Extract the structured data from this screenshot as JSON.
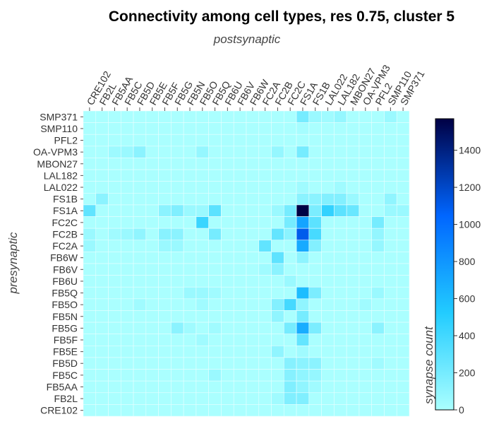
{
  "chart_data": {
    "type": "heatmap",
    "title": "Connectivity among cell types, res 0.75, cluster 5",
    "xlabel": "postsynaptic",
    "ylabel": "presynaptic",
    "colorbar_label": "synapse count",
    "x_categories": [
      "CRE102",
      "FB2L",
      "FB5AA",
      "FB5C",
      "FB5D",
      "FB5E",
      "FB5F",
      "FB5G",
      "FB5N",
      "FB5O",
      "FB5Q",
      "FB6U",
      "FB6V",
      "FB6W",
      "FC2A",
      "FC2B",
      "FC2C",
      "FS1A",
      "FS1B",
      "LAL022",
      "LAL182",
      "MBON27",
      "OA-VPM3",
      "PFL2",
      "SMP110",
      "SMP371"
    ],
    "y_categories": [
      "SMP371",
      "SMP110",
      "PFL2",
      "OA-VPM3",
      "MBON27",
      "LAL182",
      "LAL022",
      "FS1B",
      "FS1A",
      "FC2C",
      "FC2B",
      "FC2A",
      "FB6W",
      "FB6V",
      "FB6U",
      "FB5Q",
      "FB5O",
      "FB5N",
      "FB5G",
      "FB5F",
      "FB5E",
      "FB5D",
      "FB5C",
      "FB5AA",
      "FB2L",
      "CRE102"
    ],
    "colorbar_range": [
      0,
      1570
    ],
    "colorbar_ticks": [
      "0",
      "200",
      "400",
      "600",
      "800",
      "1000",
      "1200",
      "1400"
    ],
    "colorscale": [
      "#aaffff",
      "#22ccff",
      "#0066ff",
      "#000044"
    ],
    "values": [
      [
        0,
        0,
        0,
        0,
        0,
        0,
        0,
        0,
        0,
        0,
        0,
        0,
        0,
        0,
        0,
        0,
        0,
        200,
        60,
        40,
        80,
        0,
        0,
        0,
        60,
        0
      ],
      [
        0,
        0,
        0,
        0,
        0,
        0,
        0,
        0,
        0,
        0,
        0,
        0,
        0,
        0,
        0,
        0,
        0,
        20,
        0,
        0,
        0,
        0,
        0,
        0,
        0,
        0
      ],
      [
        0,
        0,
        0,
        0,
        0,
        0,
        0,
        0,
        0,
        0,
        0,
        0,
        0,
        0,
        0,
        0,
        0,
        0,
        0,
        0,
        0,
        0,
        0,
        0,
        0,
        0
      ],
      [
        0,
        0,
        50,
        60,
        120,
        0,
        0,
        0,
        0,
        80,
        0,
        0,
        0,
        0,
        0,
        80,
        0,
        200,
        0,
        0,
        0,
        0,
        0,
        0,
        0,
        0
      ],
      [
        0,
        0,
        0,
        0,
        0,
        0,
        0,
        0,
        0,
        0,
        0,
        0,
        0,
        0,
        0,
        0,
        0,
        0,
        0,
        0,
        0,
        0,
        0,
        0,
        0,
        0
      ],
      [
        0,
        0,
        0,
        0,
        0,
        0,
        0,
        0,
        0,
        0,
        0,
        0,
        0,
        0,
        0,
        0,
        0,
        0,
        0,
        0,
        0,
        0,
        0,
        0,
        0,
        0
      ],
      [
        0,
        0,
        0,
        0,
        0,
        0,
        0,
        0,
        0,
        0,
        0,
        0,
        0,
        0,
        0,
        0,
        0,
        40,
        0,
        0,
        40,
        0,
        0,
        0,
        0,
        0
      ],
      [
        0,
        120,
        0,
        0,
        0,
        0,
        0,
        0,
        0,
        0,
        0,
        0,
        0,
        0,
        0,
        0,
        0,
        120,
        120,
        150,
        150,
        60,
        0,
        0,
        100,
        0
      ],
      [
        280,
        0,
        0,
        0,
        0,
        0,
        120,
        160,
        60,
        60,
        300,
        0,
        0,
        0,
        0,
        60,
        200,
        1570,
        180,
        460,
        300,
        250,
        0,
        0,
        60,
        60
      ],
      [
        0,
        0,
        0,
        0,
        0,
        0,
        0,
        0,
        0,
        430,
        0,
        0,
        0,
        0,
        0,
        0,
        200,
        730,
        300,
        0,
        0,
        0,
        0,
        200,
        0,
        0
      ],
      [
        60,
        0,
        40,
        60,
        100,
        0,
        130,
        120,
        0,
        0,
        200,
        0,
        0,
        0,
        0,
        270,
        120,
        1100,
        380,
        0,
        0,
        0,
        0,
        90,
        0,
        0
      ],
      [
        60,
        0,
        0,
        0,
        0,
        0,
        60,
        60,
        0,
        0,
        0,
        0,
        0,
        0,
        280,
        0,
        0,
        700,
        150,
        0,
        0,
        0,
        0,
        80,
        0,
        0
      ],
      [
        0,
        0,
        0,
        0,
        0,
        0,
        0,
        0,
        0,
        0,
        0,
        0,
        0,
        0,
        0,
        290,
        0,
        110,
        0,
        0,
        0,
        0,
        0,
        0,
        0,
        0
      ],
      [
        0,
        0,
        0,
        0,
        0,
        0,
        0,
        0,
        0,
        0,
        0,
        0,
        0,
        0,
        40,
        120,
        0,
        0,
        0,
        0,
        0,
        0,
        0,
        0,
        0,
        0
      ],
      [
        0,
        0,
        0,
        0,
        0,
        0,
        0,
        0,
        0,
        0,
        0,
        0,
        0,
        0,
        0,
        0,
        60,
        0,
        0,
        0,
        0,
        0,
        0,
        0,
        0,
        0
      ],
      [
        0,
        0,
        0,
        0,
        0,
        0,
        0,
        0,
        60,
        60,
        40,
        0,
        0,
        0,
        0,
        0,
        0,
        600,
        180,
        0,
        0,
        0,
        0,
        60,
        0,
        0
      ],
      [
        0,
        0,
        0,
        0,
        40,
        0,
        0,
        0,
        0,
        40,
        0,
        0,
        0,
        0,
        0,
        150,
        390,
        100,
        0,
        0,
        0,
        0,
        40,
        0,
        0,
        0
      ],
      [
        0,
        0,
        0,
        0,
        0,
        0,
        0,
        0,
        0,
        0,
        0,
        0,
        0,
        0,
        0,
        100,
        0,
        200,
        0,
        0,
        0,
        0,
        0,
        0,
        0,
        0
      ],
      [
        0,
        0,
        0,
        0,
        0,
        0,
        0,
        120,
        40,
        0,
        40,
        0,
        0,
        0,
        0,
        0,
        200,
        680,
        180,
        0,
        0,
        0,
        0,
        120,
        0,
        0
      ],
      [
        0,
        0,
        0,
        0,
        0,
        0,
        0,
        0,
        0,
        40,
        0,
        0,
        0,
        0,
        0,
        0,
        0,
        270,
        0,
        0,
        0,
        0,
        0,
        0,
        0,
        0
      ],
      [
        0,
        0,
        0,
        0,
        0,
        0,
        0,
        0,
        0,
        0,
        0,
        0,
        0,
        0,
        0,
        100,
        0,
        40,
        0,
        0,
        0,
        0,
        0,
        0,
        0,
        0
      ],
      [
        0,
        0,
        0,
        0,
        0,
        0,
        0,
        0,
        0,
        0,
        0,
        0,
        0,
        0,
        0,
        0,
        140,
        120,
        120,
        0,
        0,
        0,
        0,
        40,
        0,
        0
      ],
      [
        0,
        0,
        0,
        0,
        0,
        0,
        0,
        0,
        0,
        0,
        60,
        0,
        0,
        0,
        0,
        0,
        140,
        100,
        80,
        0,
        0,
        0,
        0,
        0,
        0,
        0
      ],
      [
        0,
        0,
        0,
        0,
        0,
        0,
        0,
        0,
        0,
        0,
        0,
        0,
        0,
        0,
        0,
        0,
        160,
        100,
        40,
        0,
        0,
        0,
        0,
        0,
        0,
        0
      ],
      [
        0,
        0,
        0,
        0,
        0,
        0,
        0,
        0,
        0,
        0,
        0,
        0,
        0,
        0,
        0,
        40,
        160,
        160,
        0,
        0,
        0,
        0,
        0,
        0,
        0,
        0
      ],
      [
        0,
        0,
        0,
        0,
        0,
        0,
        0,
        0,
        0,
        0,
        0,
        0,
        0,
        0,
        0,
        0,
        0,
        0,
        0,
        0,
        0,
        0,
        0,
        0,
        0,
        0
      ]
    ]
  }
}
